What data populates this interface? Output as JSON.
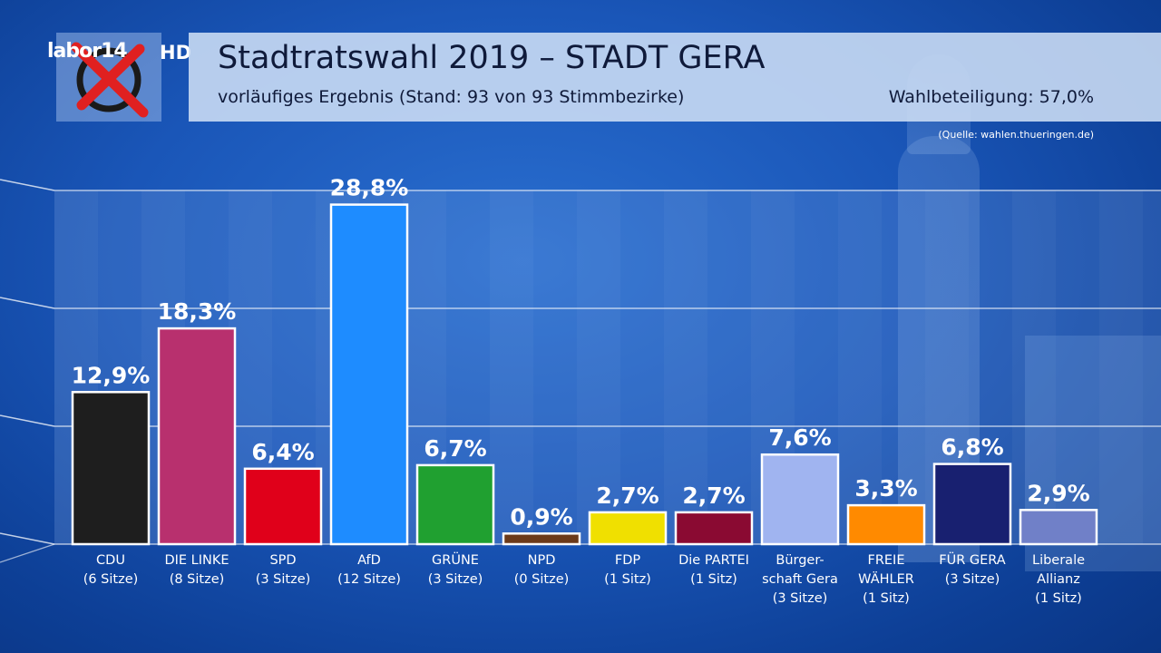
{
  "header": {
    "logo_text": "labor14",
    "logo_hd": "HD",
    "title": "Stadtratswahl 2019  – STADT GERA",
    "subtitle": "vorläufiges Ergebnis (Stand: 93 von 93 Stimmbezirke)",
    "turnout": "Wahlbeteiligung: 57,0%",
    "source": "(Quelle: wahlen.thueringen.de)"
  },
  "chart_data": {
    "type": "bar",
    "title": "Stadtratswahl 2019  – STADT GERA",
    "ylim": [
      0,
      30
    ],
    "grid": true,
    "categories": [
      [
        "CDU",
        "(6 Sitze)"
      ],
      [
        "DIE LINKE",
        "(8 Sitze)"
      ],
      [
        "SPD",
        "(3 Sitze)"
      ],
      [
        "AfD",
        "(12 Sitze)"
      ],
      [
        "GRÜNE",
        "(3 Sitze)"
      ],
      [
        "NPD",
        "(0 Sitze)"
      ],
      [
        "FDP",
        "(1 Sitz)"
      ],
      [
        "Die PARTEI",
        "(1 Sitz)"
      ],
      [
        "Bürger-",
        "schaft Gera",
        "(3 Sitze)"
      ],
      [
        "FREIE",
        "WÄHLER",
        "(1 Sitz)"
      ],
      [
        "FÜR GERA",
        "(3 Sitze)"
      ],
      [
        "Liberale",
        "Allianz",
        "(1 Sitz)"
      ]
    ],
    "values": [
      12.9,
      18.3,
      6.4,
      28.8,
      6.7,
      0.9,
      2.7,
      2.7,
      7.6,
      3.3,
      6.8,
      2.9
    ],
    "value_labels": [
      "12,9%",
      "18,3%",
      "6,4%",
      "28,8%",
      "6,7%",
      "0,9%",
      "2,7%",
      "2,7%",
      "7,6%",
      "3,3%",
      "6,8%",
      "2,9%"
    ],
    "colors": [
      "#1e1e1e",
      "#b8306e",
      "#e0001a",
      "#1e8cff",
      "#20a030",
      "#6b3a1a",
      "#f0e000",
      "#8a0a32",
      "#a0b4f0",
      "#ff8a00",
      "#182070",
      "#7080c8"
    ]
  }
}
